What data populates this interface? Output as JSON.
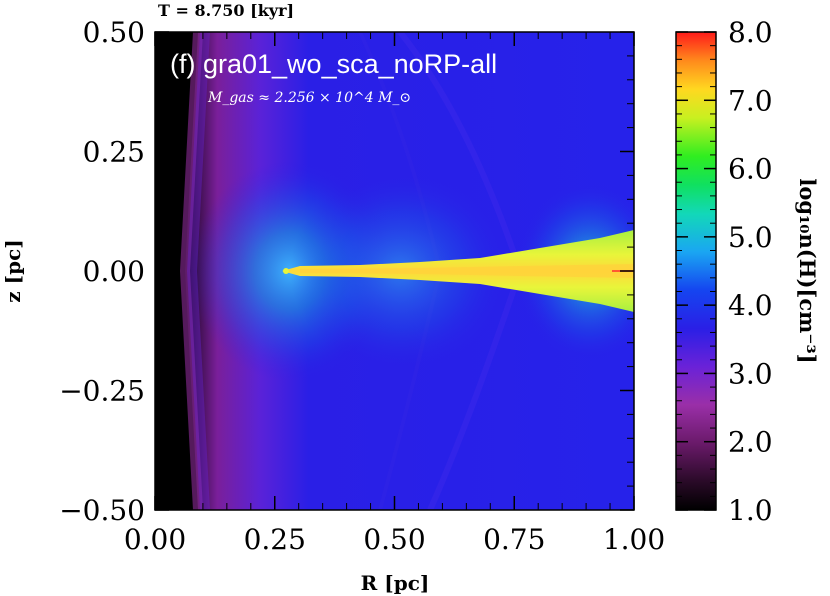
{
  "time_label": "T =    8.750 [kyr]",
  "panel_label": "(f) gra01_wo_sca_noRP-all",
  "mass_label": "M_gas ≈ 2.256 × 10^4 M_⊙",
  "chart_data": {
    "type": "heatmap",
    "xlabel": "R [pc]",
    "ylabel": "z [pc]",
    "xlim": [
      0.0,
      1.0
    ],
    "ylim": [
      -0.5,
      0.5
    ],
    "x_ticks": [
      "0.00",
      "0.25",
      "0.50",
      "0.75",
      "1.00"
    ],
    "x_tick_values": [
      0.0,
      0.25,
      0.5,
      0.75,
      1.0
    ],
    "y_ticks": [
      "0.50",
      "0.25",
      "0.00",
      "−0.25",
      "−0.50"
    ],
    "y_tick_values": [
      0.5,
      0.25,
      0.0,
      -0.25,
      -0.5
    ],
    "colorbar": {
      "label": "log₁₀n(H)[cm⁻³]",
      "range": [
        1.0,
        8.0
      ],
      "ticks": [
        "8.0",
        "7.0",
        "6.0",
        "5.0",
        "4.0",
        "3.0",
        "2.0",
        "1.0"
      ],
      "tick_values": [
        8.0,
        7.0,
        6.0,
        5.0,
        4.0,
        3.0,
        2.0,
        1.0
      ]
    },
    "features": {
      "disk_midplane_z": 0.0,
      "disk_inner_edge_R": 0.27,
      "disk_half_thickness_at_R1": 0.085,
      "disk_log_density": 6.7,
      "background_log_density": 3.2,
      "inner_void_log_density": 1.0,
      "shock_front_R_at_midplane": 0.06,
      "shock_front_R_at_edges": 0.0
    },
    "colors": {
      "void": "#000000",
      "low": "#7a1fb5",
      "background": "#2a1fe6",
      "glow": "#1e8fe0",
      "disk": "#e6f53a",
      "disk_core": "#ffd23a",
      "high": "#ff2020"
    }
  }
}
